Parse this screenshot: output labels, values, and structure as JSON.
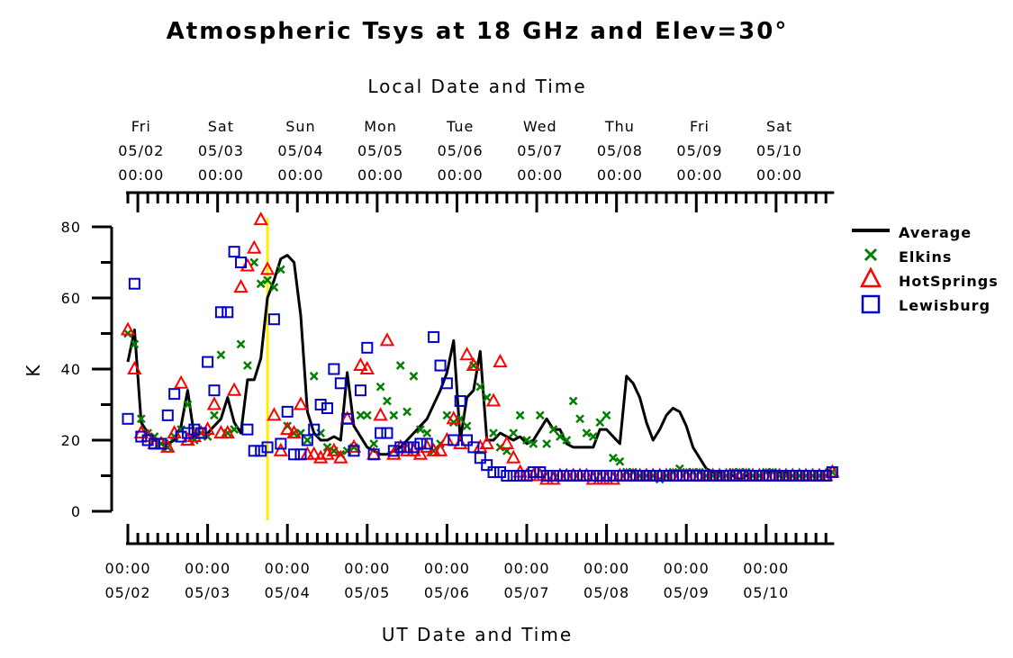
{
  "chart_data": {
    "type": "line",
    "title": "Atmospheric Tsys at 18 GHz and Elev=30°",
    "xlabel_bottom": "UT Date and Time",
    "xlabel_top": "Local Date and Time",
    "ylabel": "K",
    "ylim": [
      0,
      80
    ],
    "yticks": [
      0,
      20,
      40,
      60,
      80
    ],
    "xlim": [
      0,
      8.83
    ],
    "x_unit": "days since 05/02 00:00 UT",
    "bottom_ticks": [
      {
        "x": 0,
        "time": "00:00",
        "date": "05/02"
      },
      {
        "x": 1,
        "time": "00:00",
        "date": "05/03"
      },
      {
        "x": 2,
        "time": "00:00",
        "date": "05/04"
      },
      {
        "x": 3,
        "time": "00:00",
        "date": "05/05"
      },
      {
        "x": 4,
        "time": "00:00",
        "date": "05/06"
      },
      {
        "x": 5,
        "time": "00:00",
        "date": "05/07"
      },
      {
        "x": 6,
        "time": "00:00",
        "date": "05/08"
      },
      {
        "x": 7,
        "time": "00:00",
        "date": "05/09"
      },
      {
        "x": 8,
        "time": "00:00",
        "date": "05/10"
      }
    ],
    "top_ticks": [
      {
        "x": 0.1667,
        "day": "Fri",
        "date": "05/02",
        "time": "00:00"
      },
      {
        "x": 1.1667,
        "day": "Sat",
        "date": "05/03",
        "time": "00:00"
      },
      {
        "x": 2.1667,
        "day": "Sun",
        "date": "05/04",
        "time": "00:00"
      },
      {
        "x": 3.1667,
        "day": "Mon",
        "date": "05/05",
        "time": "00:00"
      },
      {
        "x": 4.1667,
        "day": "Tue",
        "date": "05/06",
        "time": "00:00"
      },
      {
        "x": 5.1667,
        "day": "Wed",
        "date": "05/07",
        "time": "00:00"
      },
      {
        "x": 6.1667,
        "day": "Thu",
        "date": "05/08",
        "time": "00:00"
      },
      {
        "x": 7.1667,
        "day": "Fri",
        "date": "05/09",
        "time": "00:00"
      },
      {
        "x": 8.1667,
        "day": "Sat",
        "date": "05/10",
        "time": "00:00"
      }
    ],
    "marker_line": {
      "x": 1.75,
      "color": "#ffee00"
    },
    "legend_position": "right",
    "series": [
      {
        "name": "Average",
        "kind": "line",
        "color": "#000000",
        "x": [
          0,
          0.083,
          0.167,
          0.25,
          0.333,
          0.417,
          0.5,
          0.583,
          0.667,
          0.75,
          0.833,
          0.917,
          1,
          1.083,
          1.167,
          1.25,
          1.333,
          1.417,
          1.5,
          1.583,
          1.667,
          1.75,
          1.833,
          1.917,
          2,
          2.083,
          2.167,
          2.25,
          2.333,
          2.417,
          2.5,
          2.583,
          2.667,
          2.75,
          2.833,
          2.917,
          3,
          3.083,
          3.167,
          3.25,
          3.333,
          3.417,
          3.5,
          3.583,
          3.667,
          3.75,
          3.833,
          3.917,
          4,
          4.083,
          4.167,
          4.25,
          4.333,
          4.417,
          4.5,
          4.583,
          4.667,
          4.75,
          4.833,
          4.917,
          5,
          5.083,
          5.167,
          5.25,
          5.333,
          5.417,
          5.5,
          5.583,
          5.667,
          5.75,
          5.833,
          5.917,
          6,
          6.083,
          6.167,
          6.25,
          6.333,
          6.417,
          6.5,
          6.583,
          6.667,
          6.75,
          6.833,
          6.917,
          7,
          7.083,
          7.167,
          7.25,
          7.333,
          7.417,
          7.5,
          7.583,
          7.667,
          7.75,
          7.833,
          7.917,
          8,
          8.083,
          8.167,
          8.25,
          8.333,
          8.417,
          8.5,
          8.583,
          8.667,
          8.75,
          8.83
        ],
        "values": [
          42,
          51,
          25,
          22,
          20,
          19,
          19,
          20,
          24,
          34,
          21,
          22,
          22,
          24,
          26,
          32,
          25,
          22,
          37,
          37,
          43,
          60,
          65,
          71,
          72,
          70,
          55,
          28,
          22,
          20,
          20,
          21,
          20,
          39,
          24,
          21,
          18,
          17,
          16,
          16,
          17,
          18,
          20,
          22,
          24,
          26,
          30,
          34,
          39,
          48,
          20,
          32,
          34,
          45,
          20,
          20,
          22,
          21,
          20,
          21,
          19,
          20,
          23,
          26,
          23,
          23,
          19,
          18,
          18,
          18,
          18,
          23,
          23,
          21,
          19,
          38,
          36,
          32,
          25,
          20,
          23,
          27,
          29,
          28,
          24,
          18,
          15,
          12,
          11,
          11,
          10,
          10,
          9,
          10,
          10,
          10,
          11,
          11,
          11,
          11,
          10,
          10,
          10,
          10,
          10,
          10,
          11
        ]
      },
      {
        "name": "Elkins",
        "kind": "scatter",
        "marker": "x",
        "color": "#008000",
        "x": [
          0,
          0.083,
          0.167,
          0.25,
          0.333,
          0.417,
          0.5,
          0.583,
          0.667,
          0.75,
          0.833,
          0.917,
          1,
          1.083,
          1.167,
          1.25,
          1.333,
          1.417,
          1.5,
          1.583,
          1.667,
          1.75,
          1.833,
          1.917,
          2,
          2.083,
          2.167,
          2.25,
          2.333,
          2.417,
          2.5,
          2.583,
          2.667,
          2.75,
          2.833,
          2.917,
          3,
          3.083,
          3.167,
          3.25,
          3.333,
          3.417,
          3.5,
          3.583,
          3.667,
          3.75,
          3.833,
          3.917,
          4,
          4.083,
          4.167,
          4.25,
          4.333,
          4.417,
          4.5,
          4.583,
          4.667,
          4.75,
          4.833,
          4.917,
          5,
          5.083,
          5.167,
          5.25,
          5.333,
          5.417,
          5.5,
          5.583,
          5.667,
          5.75,
          5.833,
          5.917,
          6,
          6.083,
          6.167,
          6.25,
          6.333,
          6.417,
          6.5,
          6.583,
          6.667,
          6.75,
          6.833,
          6.917,
          7,
          7.083,
          7.167,
          7.25,
          7.333,
          7.417,
          7.5,
          7.583,
          7.667,
          7.75,
          7.833,
          7.917,
          8,
          8.083,
          8.167,
          8.25,
          8.333,
          8.417,
          8.5,
          8.583,
          8.667,
          8.75,
          8.83
        ],
        "values": [
          50,
          47,
          26,
          22,
          21,
          19,
          18,
          21,
          23,
          30,
          20,
          22,
          21,
          27,
          44,
          22,
          23,
          47,
          41,
          70,
          64,
          65,
          63,
          68,
          24,
          22,
          22,
          20,
          38,
          22,
          18,
          17,
          16,
          17,
          18,
          27,
          27,
          19,
          35,
          31,
          27,
          41,
          28,
          38,
          23,
          22,
          17,
          19,
          27,
          25,
          26,
          24,
          41,
          35,
          32,
          22,
          18,
          17,
          22,
          27,
          20,
          19,
          27,
          19,
          23,
          21,
          20,
          31,
          26,
          22,
          21,
          25,
          27,
          15,
          14,
          11,
          11,
          10,
          10,
          10,
          9,
          10,
          11,
          12,
          11,
          11,
          11,
          10,
          10,
          10,
          10,
          11,
          11,
          11,
          10,
          10,
          11,
          11,
          10,
          10,
          10,
          10,
          10,
          10,
          10,
          10,
          11
        ]
      },
      {
        "name": "HotSprings",
        "kind": "scatter",
        "marker": "triangle",
        "color": "#ff0000",
        "x": [
          0,
          0.083,
          0.167,
          0.25,
          0.333,
          0.417,
          0.5,
          0.583,
          0.667,
          0.75,
          0.833,
          0.917,
          1,
          1.083,
          1.167,
          1.25,
          1.333,
          1.417,
          1.5,
          1.583,
          1.667,
          1.75,
          1.833,
          1.917,
          2,
          2.083,
          2.167,
          2.25,
          2.333,
          2.417,
          2.5,
          2.583,
          2.667,
          2.75,
          2.833,
          2.917,
          3,
          3.083,
          3.167,
          3.25,
          3.333,
          3.417,
          3.5,
          3.583,
          3.667,
          3.75,
          3.833,
          3.917,
          4,
          4.083,
          4.167,
          4.25,
          4.333,
          4.417,
          4.5,
          4.583,
          4.667,
          4.75,
          4.833,
          4.917,
          5,
          5.083,
          5.167,
          5.25,
          5.333,
          5.417,
          5.5,
          5.583,
          5.667,
          5.75,
          5.833,
          5.917,
          6,
          6.083,
          6.167,
          6.25,
          6.333,
          6.417,
          6.5,
          6.583,
          6.667,
          6.75,
          6.833,
          6.917,
          7,
          7.083,
          7.167,
          7.25,
          7.333,
          7.417,
          7.5,
          7.583,
          7.667,
          7.75,
          7.833,
          7.917,
          8,
          8.083,
          8.167,
          8.25,
          8.333,
          8.417,
          8.5,
          8.583,
          8.667,
          8.75,
          8.83
        ],
        "values": [
          51,
          40,
          22,
          21,
          19,
          19,
          18,
          22,
          36,
          20,
          21,
          22,
          23,
          30,
          22,
          22,
          34,
          63,
          69,
          74,
          82,
          68,
          27,
          17,
          23,
          22,
          30,
          16,
          16,
          15,
          16,
          17,
          15,
          26,
          18,
          41,
          40,
          16,
          27,
          48,
          16,
          18,
          17,
          17,
          16,
          18,
          17,
          17,
          20,
          26,
          19,
          44,
          41,
          18,
          19,
          31,
          42,
          19,
          15,
          11,
          10,
          10,
          10,
          9,
          9,
          10,
          10,
          10,
          10,
          10,
          9,
          9,
          9,
          9,
          10,
          10,
          10,
          10,
          10,
          10,
          10,
          10,
          10,
          10,
          10,
          10,
          10,
          10,
          10,
          10,
          10,
          10,
          10,
          10,
          10,
          10,
          10,
          10,
          10,
          10,
          10,
          10,
          10,
          10,
          10,
          10,
          11
        ]
      },
      {
        "name": "Lewisburg",
        "kind": "scatter",
        "marker": "square",
        "color": "#0000cc",
        "x": [
          0,
          0.083,
          0.167,
          0.25,
          0.333,
          0.417,
          0.5,
          0.583,
          0.667,
          0.75,
          0.833,
          0.917,
          1,
          1.083,
          1.167,
          1.25,
          1.333,
          1.417,
          1.5,
          1.583,
          1.667,
          1.75,
          1.833,
          1.917,
          2,
          2.083,
          2.167,
          2.25,
          2.333,
          2.417,
          2.5,
          2.583,
          2.667,
          2.75,
          2.833,
          2.917,
          3,
          3.083,
          3.167,
          3.25,
          3.333,
          3.417,
          3.5,
          3.583,
          3.667,
          3.75,
          3.833,
          3.917,
          4,
          4.083,
          4.167,
          4.25,
          4.333,
          4.417,
          4.5,
          4.583,
          4.667,
          4.75,
          4.833,
          4.917,
          5,
          5.083,
          5.167,
          5.25,
          5.333,
          5.417,
          5.5,
          5.583,
          5.667,
          5.75,
          5.833,
          5.917,
          6,
          6.083,
          6.167,
          6.25,
          6.333,
          6.417,
          6.5,
          6.583,
          6.667,
          6.75,
          6.833,
          6.917,
          7,
          7.083,
          7.167,
          7.25,
          7.333,
          7.417,
          7.5,
          7.583,
          7.667,
          7.75,
          7.833,
          7.917,
          8,
          8.083,
          8.167,
          8.25,
          8.333,
          8.417,
          8.5,
          8.583,
          8.667,
          8.75,
          8.83
        ],
        "values": [
          26,
          64,
          21,
          20,
          19,
          19,
          27,
          33,
          21,
          22,
          23,
          22,
          42,
          34,
          56,
          56,
          73,
          70,
          23,
          17,
          17,
          18,
          54,
          19,
          28,
          16,
          16,
          20,
          23,
          30,
          29,
          40,
          36,
          26,
          17,
          34,
          46,
          16,
          22,
          22,
          17,
          18,
          18,
          18,
          19,
          19,
          49,
          41,
          36,
          20,
          31,
          20,
          18,
          15,
          13,
          11,
          11,
          10,
          10,
          10,
          10,
          11,
          11,
          10,
          10,
          10,
          10,
          10,
          10,
          10,
          10,
          10,
          10,
          10,
          10,
          10,
          10,
          10,
          10,
          10,
          10,
          10,
          10,
          10,
          10,
          10,
          10,
          10,
          10,
          10,
          10,
          10,
          10,
          10,
          10,
          10,
          10,
          10,
          10,
          10,
          10,
          10,
          10,
          10,
          10,
          10,
          11
        ]
      }
    ]
  }
}
